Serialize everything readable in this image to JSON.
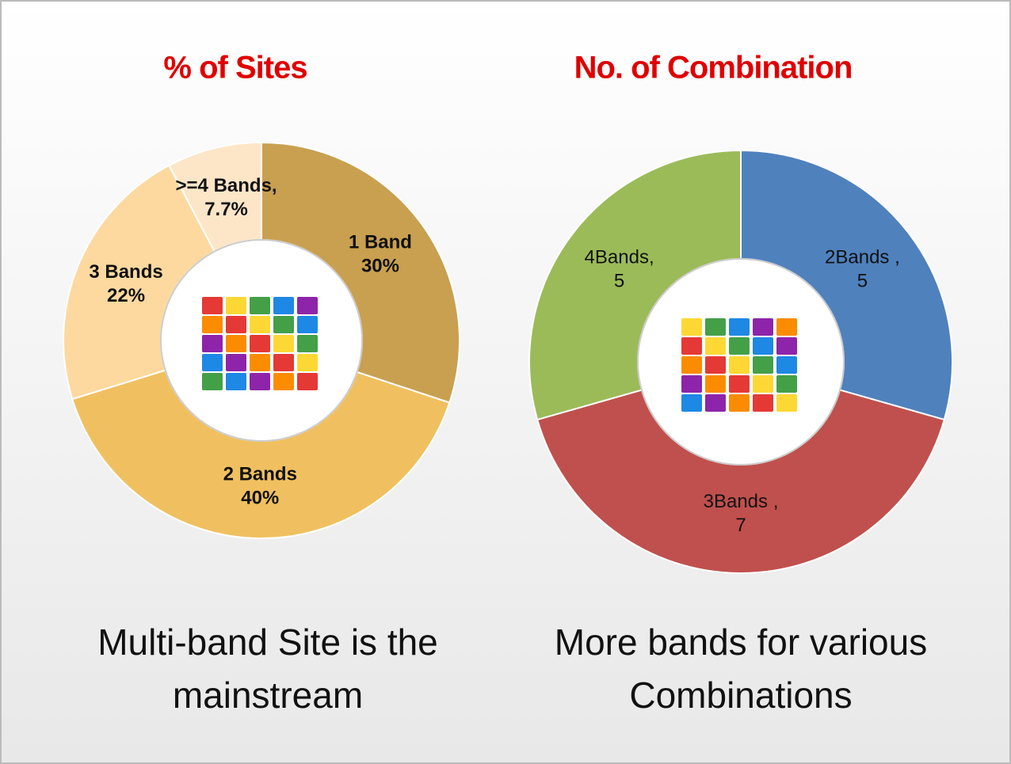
{
  "chart_data": [
    {
      "type": "donut",
      "title": "% of Sites",
      "categories": [
        "1 Band",
        "2 Bands",
        "3 Bands",
        ">=4 Bands,"
      ],
      "values": [
        30,
        40,
        22,
        7.7
      ],
      "value_labels": [
        "30%",
        "40%",
        "22%",
        "7.7%"
      ],
      "colors": [
        "#c9a050",
        "#f0c060",
        "#fdd9a0",
        "#fde6c8"
      ],
      "caption": [
        "Multi-band Site is the",
        "mainstream"
      ]
    },
    {
      "type": "donut",
      "title": "No. of Combination",
      "categories": [
        "2Bands ,",
        "3Bands ,",
        "4Bands,"
      ],
      "values": [
        5,
        7,
        5
      ],
      "colors": [
        "#4f81bd",
        "#c0504d",
        "#9bbb59"
      ],
      "caption": [
        "More bands for various",
        "Combinations"
      ]
    }
  ]
}
